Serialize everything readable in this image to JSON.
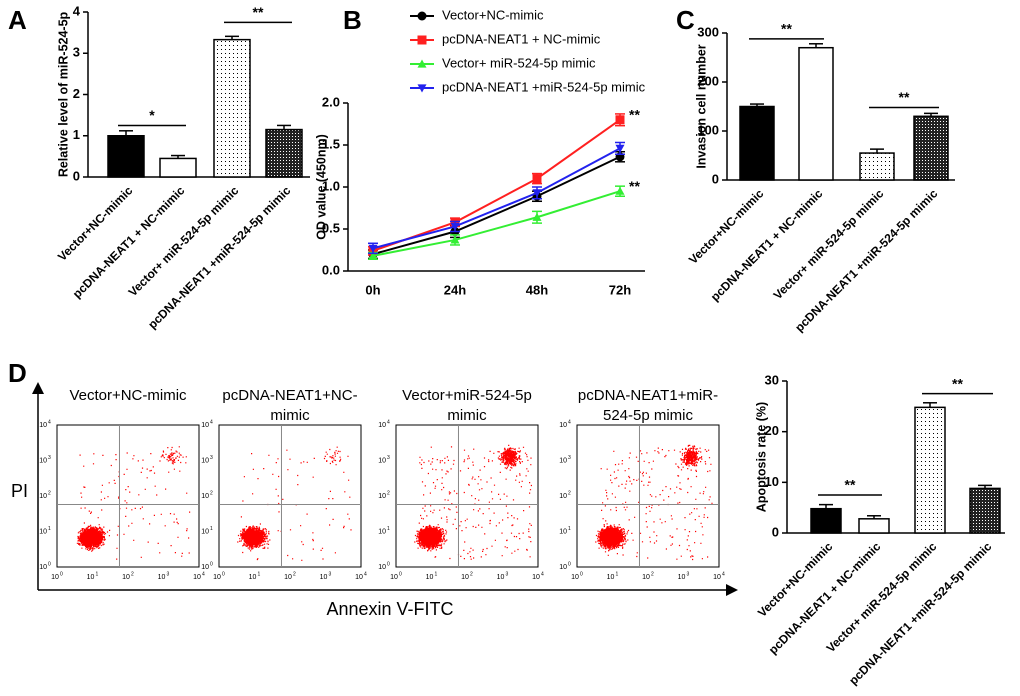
{
  "chart_data": [
    {
      "type": "bar",
      "panel": "A",
      "y_label": "Relative level of miR-524-5p",
      "categories": [
        "Vector+NC-mimic",
        "pcDNA-NEAT1 + NC-mimic",
        "Vector+ miR-524-5p mimic",
        "pcDNA-NEAT1 +miR-524-5p mimic"
      ],
      "values": [
        1.0,
        0.45,
        3.33,
        1.15
      ],
      "errors": [
        0.12,
        0.07,
        0.08,
        0.1
      ],
      "patterns": [
        "solid",
        "open",
        "dots",
        "checks"
      ],
      "ylim": [
        0,
        4
      ],
      "yticks": [
        0,
        1,
        2,
        3,
        4
      ],
      "annotations": [
        {
          "text": "*",
          "between": [
            0,
            1
          ],
          "y": 1.25
        },
        {
          "text": "**",
          "between": [
            2,
            3
          ],
          "y": 3.75
        }
      ]
    },
    {
      "type": "line",
      "panel": "B",
      "y_label": "OD value (450nm)",
      "categories": [
        "0h",
        "24h",
        "48h",
        "72h"
      ],
      "series": [
        {
          "name": "Vector+NC-mimic",
          "color": "#000000",
          "marker": "circle",
          "values": [
            0.2,
            0.47,
            0.89,
            1.36
          ],
          "errors": [
            0.05,
            0.07,
            0.06,
            0.06
          ]
        },
        {
          "name": "pcDNA-NEAT1 + NC-mimic",
          "color": "#ff2020",
          "marker": "square",
          "values": [
            0.24,
            0.58,
            1.1,
            1.8
          ],
          "errors": [
            0.05,
            0.05,
            0.06,
            0.07
          ]
        },
        {
          "name": "Vector+ miR-524-5p mimic",
          "color": "#33ee33",
          "marker": "triangle-up",
          "values": [
            0.18,
            0.37,
            0.64,
            0.95
          ],
          "errors": [
            0.04,
            0.06,
            0.07,
            0.06
          ]
        },
        {
          "name": "pcDNA-NEAT1 +miR-524-5p mimic",
          "color": "#2222ee",
          "marker": "triangle-down",
          "values": [
            0.27,
            0.53,
            0.93,
            1.46
          ],
          "errors": [
            0.06,
            0.06,
            0.07,
            0.07
          ]
        }
      ],
      "ylim": [
        0,
        2
      ],
      "yticks": [
        {
          "value": 0,
          "label": "0.0"
        },
        0.5,
        {
          "value": 1,
          "label": "1.0"
        },
        1.5,
        {
          "value": 2,
          "label": "2.0"
        }
      ],
      "annotations": [
        {
          "text": "**",
          "series": 1
        },
        {
          "text": "**",
          "series": 2
        }
      ]
    },
    {
      "type": "bar",
      "panel": "C",
      "y_label": "Invasion cell number",
      "categories": [
        "Vector+NC-mimic",
        "pcDNA-NEAT1 + NC-mimic",
        "Vector+ miR-524-5p mimic",
        "pcDNA-NEAT1 +miR-524-5p mimic"
      ],
      "values": [
        150,
        270,
        55,
        130
      ],
      "errors": [
        5,
        8,
        8,
        6
      ],
      "patterns": [
        "solid",
        "open",
        "dots",
        "checks"
      ],
      "ylim": [
        0,
        300
      ],
      "yticks": [
        0,
        100,
        200,
        300
      ],
      "annotations": [
        {
          "text": "**",
          "between": [
            0,
            1
          ],
          "y": 288
        },
        {
          "text": "**",
          "between": [
            2,
            3
          ],
          "y": 148
        }
      ]
    },
    {
      "type": "flow",
      "panel": "D",
      "titles": [
        [
          "Vector+NC-mimic"
        ],
        [
          "pcDNA-NEAT1+NC-",
          "mimic"
        ],
        [
          "Vector+miR-524-5p",
          "mimic"
        ],
        [
          "pcDNA-NEAT1+miR-",
          "524-5p mimic"
        ]
      ],
      "y_label": "PI",
      "x_label": "Annexin V-FITC",
      "tick_base": "10",
      "tick_exponents": [
        "0",
        "1",
        "2",
        "3",
        "4"
      ]
    },
    {
      "type": "bar",
      "y_label": "Apoptosis rate (%)",
      "categories": [
        "Vector+NC-mimic",
        "pcDNA-NEAT1 + NC-mimic",
        "Vector+ miR-524-5p mimic",
        "pcDNA-NEAT1 +miR-524-5p mimic"
      ],
      "values": [
        4.8,
        2.8,
        24.8,
        8.8
      ],
      "errors": [
        0.8,
        0.6,
        0.9,
        0.6
      ],
      "patterns": [
        "solid",
        "open",
        "dots",
        "checks"
      ],
      "ylim": [
        0,
        30
      ],
      "yticks": [
        0,
        10,
        20,
        30
      ],
      "annotations": [
        {
          "text": "**",
          "between": [
            0,
            1
          ],
          "y": 7.5
        },
        {
          "text": "**",
          "between": [
            2,
            3
          ],
          "y": 27.5
        }
      ]
    }
  ]
}
